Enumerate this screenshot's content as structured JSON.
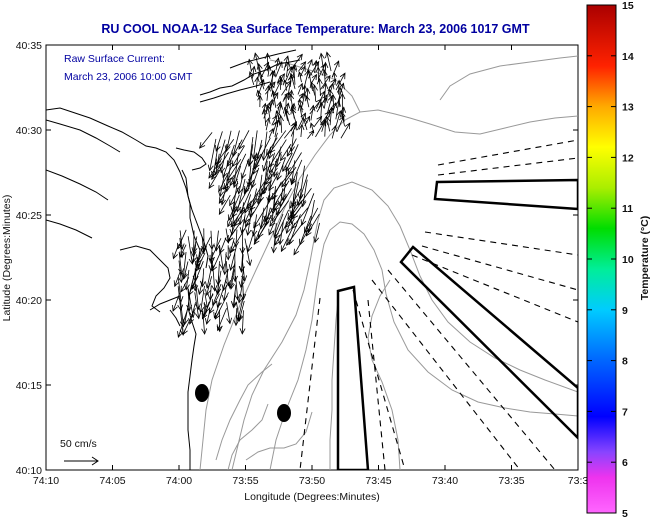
{
  "header": {
    "title": "RU COOL   NOAA-12  Sea Surface Temperature:  March 23, 2006 1017 GMT"
  },
  "annotation": {
    "line1": "Raw Surface Current:",
    "line2": "March 23, 2006 10:00 GMT"
  },
  "scale_arrow": {
    "label": "50 cm/s"
  },
  "axes": {
    "xlabel": "Longitude (Degrees:Minutes)",
    "ylabel": "Latitude (Degrees:Minutes)",
    "x_ticks": [
      "74:10",
      "74:05",
      "74:00",
      "73:55",
      "73:50",
      "73:45",
      "73:40",
      "73:35",
      "73:3"
    ],
    "y_ticks": [
      "40:35",
      "40:30",
      "40:25",
      "40:20",
      "40:15",
      "40:10"
    ]
  },
  "colorbar": {
    "label": "Temperature (°C)",
    "ticks": [
      "15",
      "14",
      "13",
      "12",
      "11",
      "10",
      "9",
      "8",
      "7",
      "6",
      "5"
    ]
  },
  "colors": {
    "title": "#0000a0",
    "annotation": "#0000a0",
    "contour_gray": "#999999",
    "coast": "#000000"
  }
}
